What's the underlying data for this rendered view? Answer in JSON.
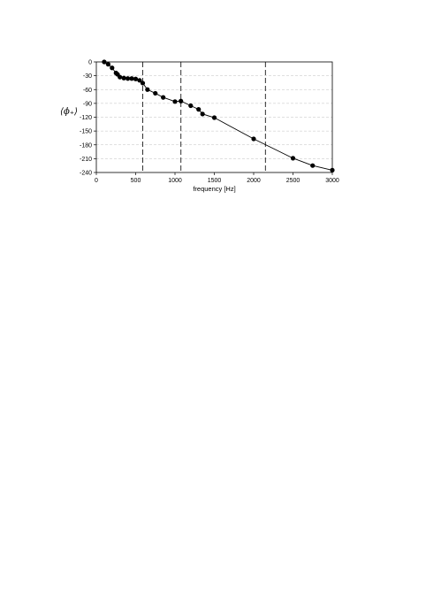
{
  "chart_data": {
    "type": "line",
    "xlabel": "frequency [Hz]",
    "ylabel": "⟨ϕ₊⟩",
    "xlim": [
      0,
      3000
    ],
    "ylim": [
      -240,
      0
    ],
    "x_ticks": [
      "0",
      "500",
      "1000",
      "1500",
      "2000",
      "2500",
      "3000"
    ],
    "y_ticks": [
      "0",
      "-30",
      "-60",
      "-90",
      "-120",
      "-150",
      "-180",
      "-210",
      "-240"
    ],
    "grid": "horizontal dashed",
    "markers": "filled circles",
    "vertical_dashed_lines_x": [
      590,
      1075,
      2150
    ],
    "series": [
      {
        "x": [
          100,
          150,
          200,
          250,
          270,
          300,
          350,
          400,
          450,
          500,
          550,
          590,
          650,
          750,
          850,
          1000,
          1075,
          1200,
          1300,
          1350,
          1500,
          2000,
          2500,
          2750,
          3000
        ],
        "values": [
          0,
          -5,
          -13,
          -24,
          -27,
          -33,
          -35,
          -36,
          -36,
          -37,
          -40,
          -46,
          -60,
          -68,
          -77,
          -86,
          -85,
          -95,
          -103,
          -113,
          -121,
          -167,
          -209,
          -225,
          -235
        ]
      }
    ]
  },
  "colors": {
    "axis": "#000000",
    "grid": "#c0c0c0",
    "line": "#000000",
    "vline": "#303030"
  }
}
